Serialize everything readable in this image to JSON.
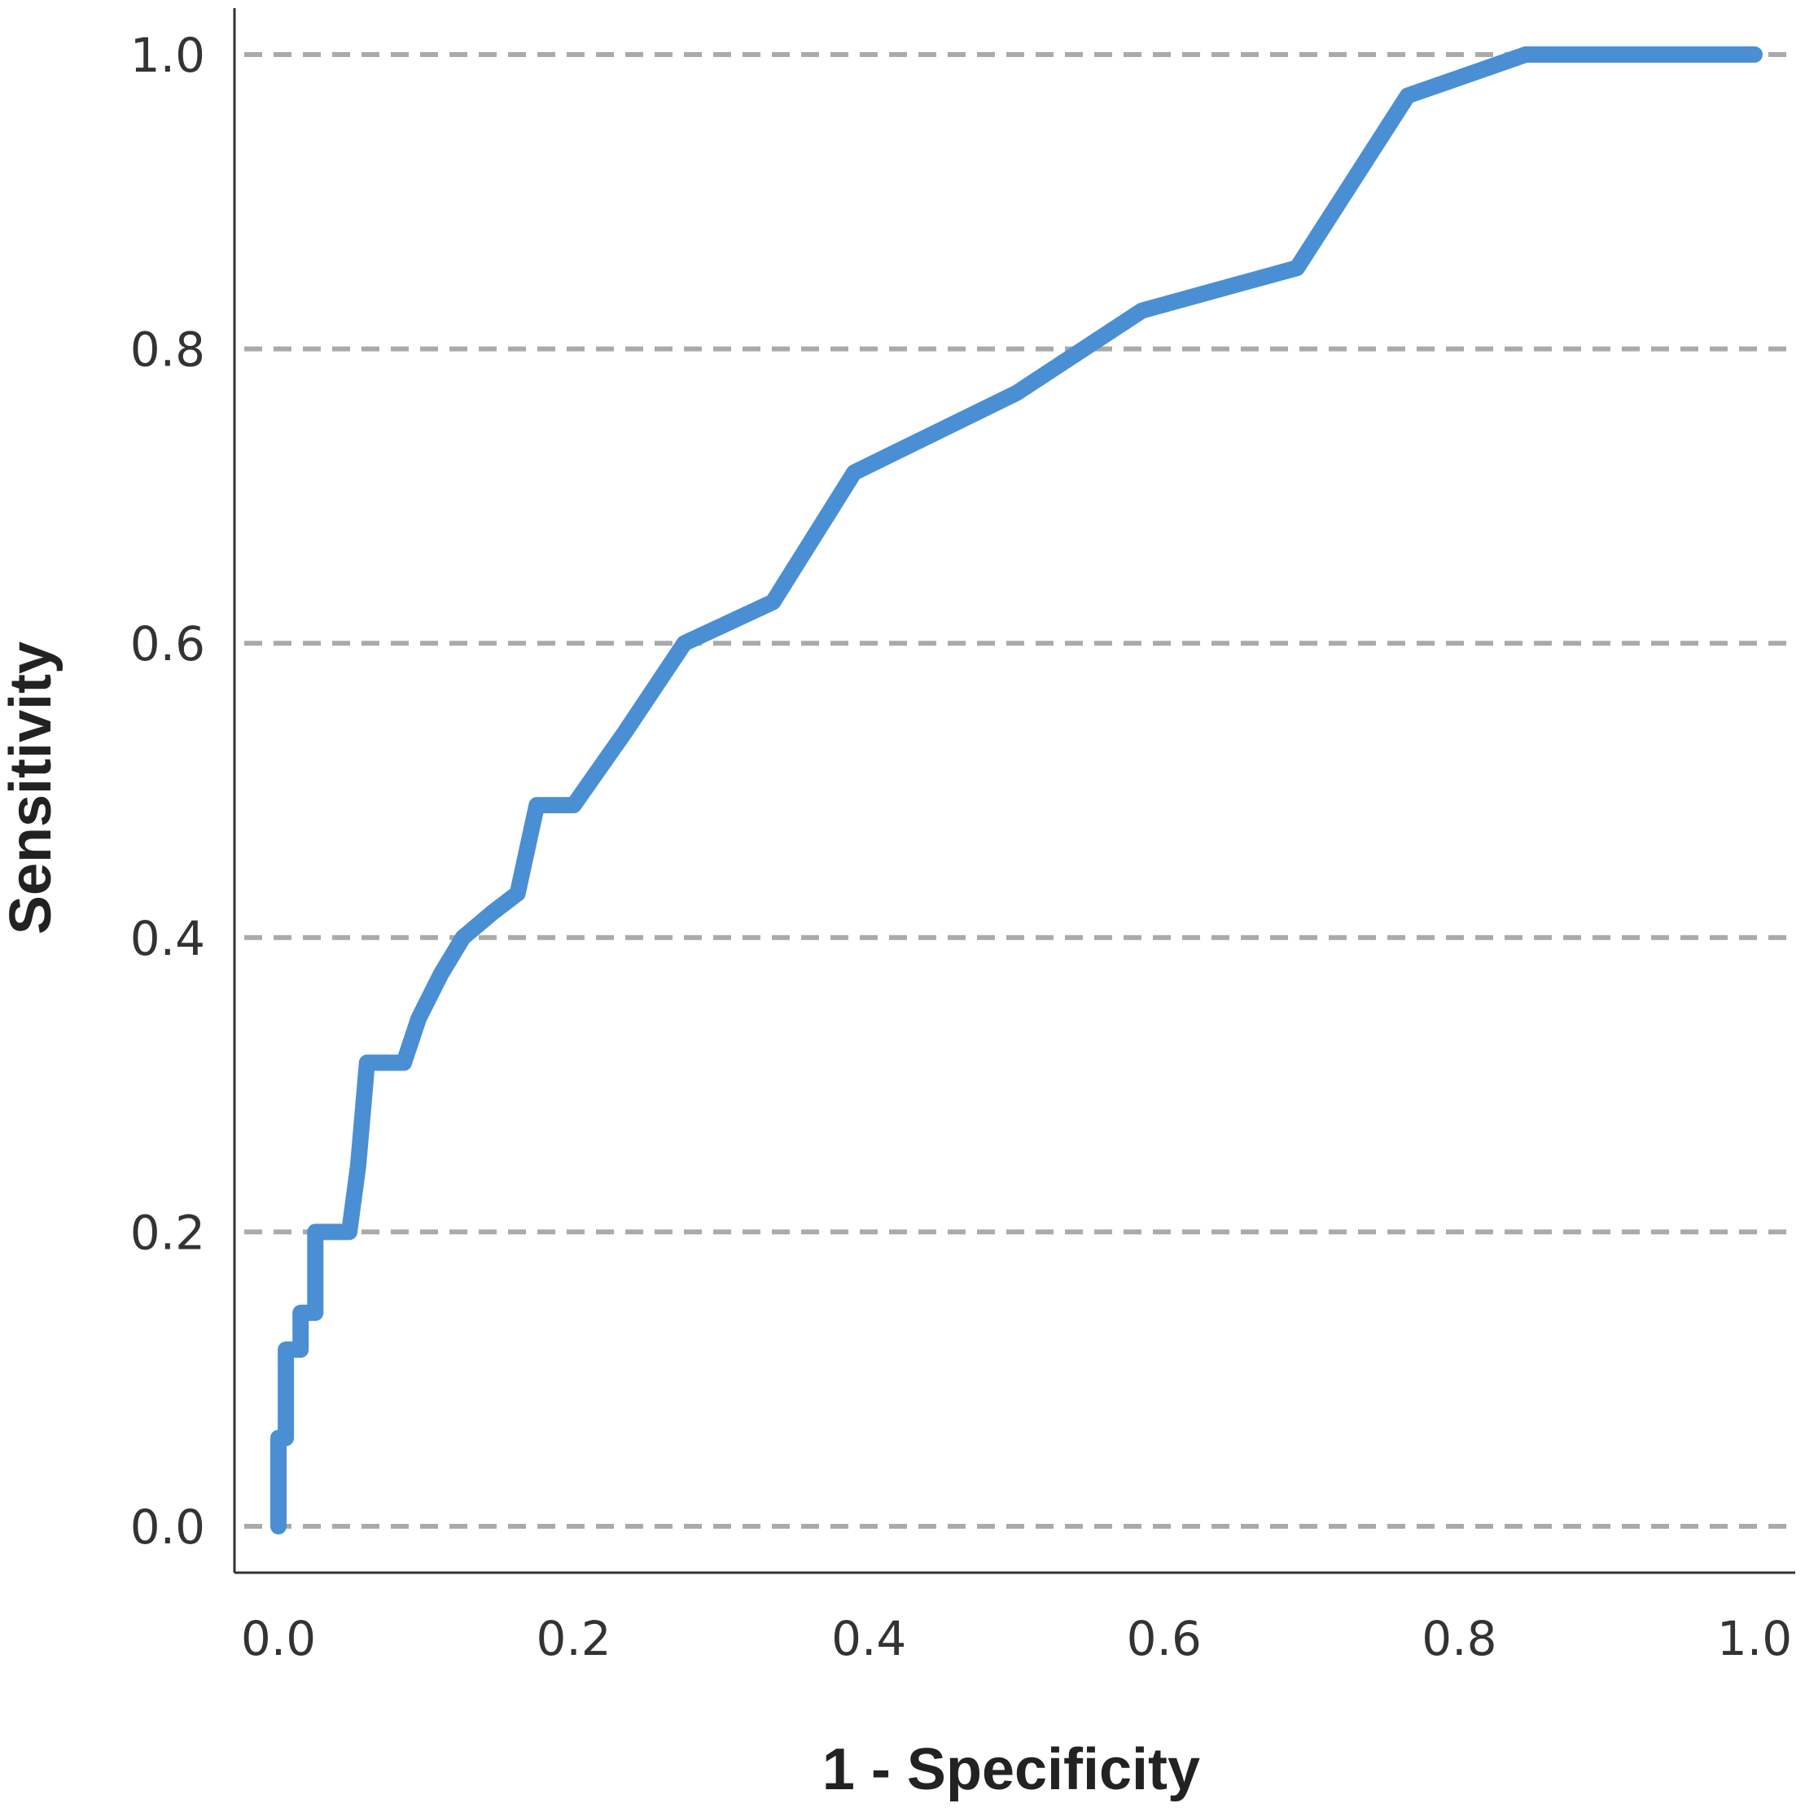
{
  "chart_data": {
    "type": "line",
    "title": "",
    "xlabel": "1 - Specificity",
    "ylabel": "Sensitivity",
    "xlim": [
      0,
      1
    ],
    "ylim": [
      0,
      1
    ],
    "x_ticks": [
      "0.0",
      "0.2",
      "0.4",
      "0.6",
      "0.8",
      "1.0"
    ],
    "y_ticks": [
      "0.0",
      "0.2",
      "0.4",
      "0.6",
      "0.8",
      "1.0"
    ],
    "grid": "horizontal dashed",
    "series": [
      {
        "color": "#4a8fd3",
        "x": [
          0.0,
          0.0,
          0.005,
          0.005,
          0.015,
          0.015,
          0.025,
          0.025,
          0.048,
          0.054,
          0.06,
          0.085,
          0.095,
          0.11,
          0.125,
          0.145,
          0.162,
          0.175,
          0.2,
          0.235,
          0.275,
          0.335,
          0.39,
          0.5,
          0.585,
          0.69,
          0.765,
          0.845,
          1.0
        ],
        "y": [
          0.0,
          0.06,
          0.06,
          0.12,
          0.12,
          0.145,
          0.145,
          0.2,
          0.2,
          0.245,
          0.315,
          0.315,
          0.345,
          0.375,
          0.4,
          0.417,
          0.43,
          0.49,
          0.49,
          0.54,
          0.6,
          0.628,
          0.716,
          0.77,
          0.826,
          0.855,
          0.972,
          1.0,
          1.0
        ]
      }
    ]
  }
}
